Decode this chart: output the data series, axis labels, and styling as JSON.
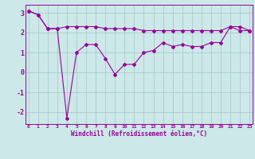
{
  "line1_x": [
    0,
    1,
    2,
    3,
    4,
    5,
    6,
    7,
    8,
    9,
    10,
    11,
    12,
    13,
    14,
    15,
    16,
    17,
    18,
    19,
    20,
    21,
    22,
    23
  ],
  "line1_y": [
    3.1,
    2.9,
    2.2,
    2.2,
    2.3,
    2.3,
    2.3,
    2.3,
    2.2,
    2.2,
    2.2,
    2.2,
    2.1,
    2.1,
    2.1,
    2.1,
    2.1,
    2.1,
    2.1,
    2.1,
    2.1,
    2.3,
    2.3,
    2.1
  ],
  "line2_x": [
    0,
    1,
    2,
    3,
    4,
    5,
    6,
    7,
    8,
    9,
    10,
    11,
    12,
    13,
    14,
    15,
    16,
    17,
    18,
    19,
    20,
    21,
    22,
    23
  ],
  "line2_y": [
    3.1,
    2.9,
    2.2,
    2.2,
    -2.3,
    1.0,
    1.4,
    1.4,
    0.7,
    -0.1,
    0.4,
    0.4,
    1.0,
    1.1,
    1.5,
    1.3,
    1.4,
    1.3,
    1.3,
    1.5,
    1.5,
    2.3,
    2.1,
    2.1
  ],
  "color": "#990099",
  "bg_color": "#cce8e8",
  "grid_color": "#aacccc",
  "ylim": [
    -2.6,
    3.4
  ],
  "xlim": [
    -0.3,
    23.3
  ],
  "yticks": [
    -2,
    -1,
    0,
    1,
    2,
    3
  ],
  "xticks": [
    0,
    1,
    2,
    3,
    4,
    5,
    6,
    7,
    8,
    9,
    10,
    11,
    12,
    13,
    14,
    15,
    16,
    17,
    18,
    19,
    20,
    21,
    22,
    23
  ],
  "xlabel": "Windchill (Refroidissement éolien,°C)",
  "marker": "D",
  "markersize": 2.0,
  "linewidth": 0.8
}
